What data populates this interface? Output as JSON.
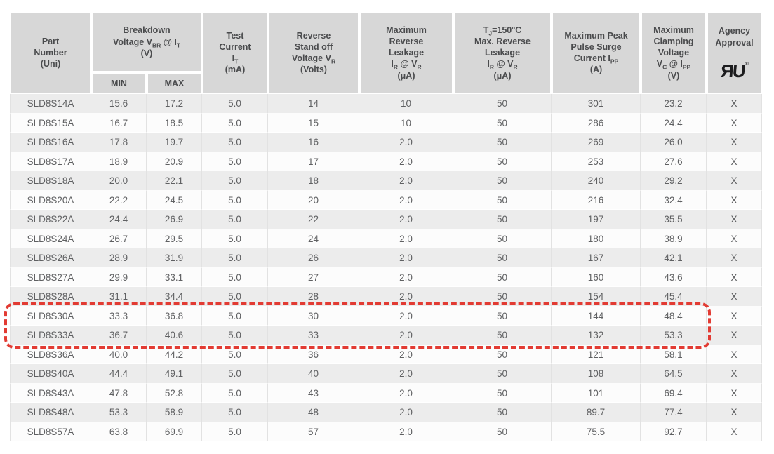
{
  "colors": {
    "page_bg": "#ffffff",
    "header_bg": "#d7d7d7",
    "row_gray": "#ececec",
    "row_white": "#fcfcfc",
    "grid_line": "#e2e2e2",
    "text": "#5f6062",
    "header_text": "#4a4b4d",
    "highlight": "#e23b33",
    "ul_mark": "#1c1c1e"
  },
  "table": {
    "headers": {
      "part_number": "Part\nNumber\n(Uni)",
      "breakdown_voltage": "Breakdown\nVoltage V~BR~ @ I~T~\n(V)",
      "min": "MIN",
      "max": "MAX",
      "test_current": "Test\nCurrent\nI~T~\n(mA)",
      "reverse_standoff": "Reverse\nStand off\nVoltage V~R~\n(Volts)",
      "max_reverse_leakage": "Maximum\nReverse\nLeakage\nI~R~ @ V~R~\n(μA)",
      "tj150_max_reverse_leakage": "T~J~=150°C\nMax. Reverse\nLeakage\nI~R~ @ V~R~\n(μA)",
      "max_peak_pulse_surge": "Maximum Peak\nPulse Surge\nCurrent I~PP~\n(A)",
      "max_clamping_voltage": "Maximum\nClamping\nVoltage\nV~C~ @ I~PP~\n(V)",
      "agency_approval": "Agency\nApproval"
    },
    "agency_icon": {
      "name": "ul-recognized-component-icon",
      "glyph": "ЯU",
      "reg_mark": "®"
    },
    "column_keys": [
      "part",
      "min",
      "max",
      "test",
      "standoff",
      "leakage",
      "tj_leakage",
      "surge",
      "clamp",
      "agency"
    ],
    "rows": [
      {
        "part": "SLD8S14A",
        "min": "15.6",
        "max": "17.2",
        "test": "5.0",
        "standoff": "14",
        "leakage": "10",
        "tj_leakage": "50",
        "surge": "301",
        "clamp": "23.2",
        "agency": "X",
        "highlighted": false
      },
      {
        "part": "SLD8S15A",
        "min": "16.7",
        "max": "18.5",
        "test": "5.0",
        "standoff": "15",
        "leakage": "10",
        "tj_leakage": "50",
        "surge": "286",
        "clamp": "24.4",
        "agency": "X",
        "highlighted": false
      },
      {
        "part": "SLD8S16A",
        "min": "17.8",
        "max": "19.7",
        "test": "5.0",
        "standoff": "16",
        "leakage": "2.0",
        "tj_leakage": "50",
        "surge": "269",
        "clamp": "26.0",
        "agency": "X",
        "highlighted": false
      },
      {
        "part": "SLD8S17A",
        "min": "18.9",
        "max": "20.9",
        "test": "5.0",
        "standoff": "17",
        "leakage": "2.0",
        "tj_leakage": "50",
        "surge": "253",
        "clamp": "27.6",
        "agency": "X",
        "highlighted": false
      },
      {
        "part": "SLD8S18A",
        "min": "20.0",
        "max": "22.1",
        "test": "5.0",
        "standoff": "18",
        "leakage": "2.0",
        "tj_leakage": "50",
        "surge": "240",
        "clamp": "29.2",
        "agency": "X",
        "highlighted": false
      },
      {
        "part": "SLD8S20A",
        "min": "22.2",
        "max": "24.5",
        "test": "5.0",
        "standoff": "20",
        "leakage": "2.0",
        "tj_leakage": "50",
        "surge": "216",
        "clamp": "32.4",
        "agency": "X",
        "highlighted": false
      },
      {
        "part": "SLD8S22A",
        "min": "24.4",
        "max": "26.9",
        "test": "5.0",
        "standoff": "22",
        "leakage": "2.0",
        "tj_leakage": "50",
        "surge": "197",
        "clamp": "35.5",
        "agency": "X",
        "highlighted": false
      },
      {
        "part": "SLD8S24A",
        "min": "26.7",
        "max": "29.5",
        "test": "5.0",
        "standoff": "24",
        "leakage": "2.0",
        "tj_leakage": "50",
        "surge": "180",
        "clamp": "38.9",
        "agency": "X",
        "highlighted": false
      },
      {
        "part": "SLD8S26A",
        "min": "28.9",
        "max": "31.9",
        "test": "5.0",
        "standoff": "26",
        "leakage": "2.0",
        "tj_leakage": "50",
        "surge": "167",
        "clamp": "42.1",
        "agency": "X",
        "highlighted": false
      },
      {
        "part": "SLD8S27A",
        "min": "29.9",
        "max": "33.1",
        "test": "5.0",
        "standoff": "27",
        "leakage": "2.0",
        "tj_leakage": "50",
        "surge": "160",
        "clamp": "43.6",
        "agency": "X",
        "highlighted": false
      },
      {
        "part": "SLD8S28A",
        "min": "31.1",
        "max": "34.4",
        "test": "5.0",
        "standoff": "28",
        "leakage": "2.0",
        "tj_leakage": "50",
        "surge": "154",
        "clamp": "45.4",
        "agency": "X",
        "highlighted": false
      },
      {
        "part": "SLD8S30A",
        "min": "33.3",
        "max": "36.8",
        "test": "5.0",
        "standoff": "30",
        "leakage": "2.0",
        "tj_leakage": "50",
        "surge": "144",
        "clamp": "48.4",
        "agency": "X",
        "highlighted": true
      },
      {
        "part": "SLD8S33A",
        "min": "36.7",
        "max": "40.6",
        "test": "5.0",
        "standoff": "33",
        "leakage": "2.0",
        "tj_leakage": "50",
        "surge": "132",
        "clamp": "53.3",
        "agency": "X",
        "highlighted": true
      },
      {
        "part": "SLD8S36A",
        "min": "40.0",
        "max": "44.2",
        "test": "5.0",
        "standoff": "36",
        "leakage": "2.0",
        "tj_leakage": "50",
        "surge": "121",
        "clamp": "58.1",
        "agency": "X",
        "highlighted": false
      },
      {
        "part": "SLD8S40A",
        "min": "44.4",
        "max": "49.1",
        "test": "5.0",
        "standoff": "40",
        "leakage": "2.0",
        "tj_leakage": "50",
        "surge": "108",
        "clamp": "64.5",
        "agency": "X",
        "highlighted": false
      },
      {
        "part": "SLD8S43A",
        "min": "47.8",
        "max": "52.8",
        "test": "5.0",
        "standoff": "43",
        "leakage": "2.0",
        "tj_leakage": "50",
        "surge": "101",
        "clamp": "69.4",
        "agency": "X",
        "highlighted": false
      },
      {
        "part": "SLD8S48A",
        "min": "53.3",
        "max": "58.9",
        "test": "5.0",
        "standoff": "48",
        "leakage": "2.0",
        "tj_leakage": "50",
        "surge": "89.7",
        "clamp": "77.4",
        "agency": "X",
        "highlighted": false
      },
      {
        "part": "SLD8S57A",
        "min": "63.8",
        "max": "69.9",
        "test": "5.0",
        "standoff": "57",
        "leakage": "2.0",
        "tj_leakage": "50",
        "surge": "75.5",
        "clamp": "92.7",
        "agency": "X",
        "highlighted": false
      }
    ]
  }
}
